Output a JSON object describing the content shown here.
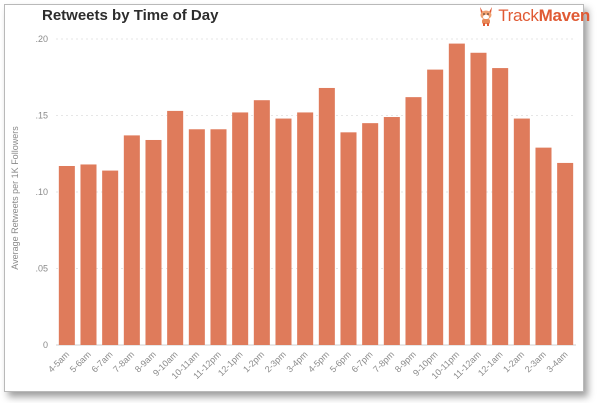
{
  "brand": {
    "name_part1": "Track",
    "name_part2": "Maven",
    "logo_icon": "corgi-dog-logo-icon",
    "color": "#e05a34"
  },
  "chart_data": {
    "type": "bar",
    "title": "Retweets by Time of Day",
    "ylabel": "Average Retweets per 1K Followers",
    "xlabel": "",
    "ylim": [
      0,
      0.2
    ],
    "yticks": [
      {
        "value": 0,
        "label": "0"
      },
      {
        "value": 0.05,
        "label": ".05"
      },
      {
        "value": 0.1,
        "label": ".10"
      },
      {
        "value": 0.15,
        "label": ".15"
      },
      {
        "value": 0.2,
        "label": ".20"
      }
    ],
    "grid": "horizontal-dashed",
    "bar_color": "#df7b5b",
    "categories": [
      "4-5am",
      "5-6am",
      "6-7am",
      "7-8am",
      "8-9am",
      "9-10am",
      "10-11am",
      "11-12pm",
      "12-1pm",
      "1-2pm",
      "2-3pm",
      "3-4pm",
      "4-5pm",
      "5-6pm",
      "6-7pm",
      "7-8pm",
      "8-9pm",
      "9-10pm",
      "10-11pm",
      "11-12am",
      "12-1am",
      "1-2am",
      "2-3am",
      "3-4am"
    ],
    "values": [
      0.117,
      0.118,
      0.114,
      0.137,
      0.134,
      0.153,
      0.141,
      0.141,
      0.152,
      0.16,
      0.148,
      0.152,
      0.168,
      0.139,
      0.145,
      0.149,
      0.162,
      0.18,
      0.197,
      0.191,
      0.181,
      0.148,
      0.129,
      0.119
    ]
  }
}
